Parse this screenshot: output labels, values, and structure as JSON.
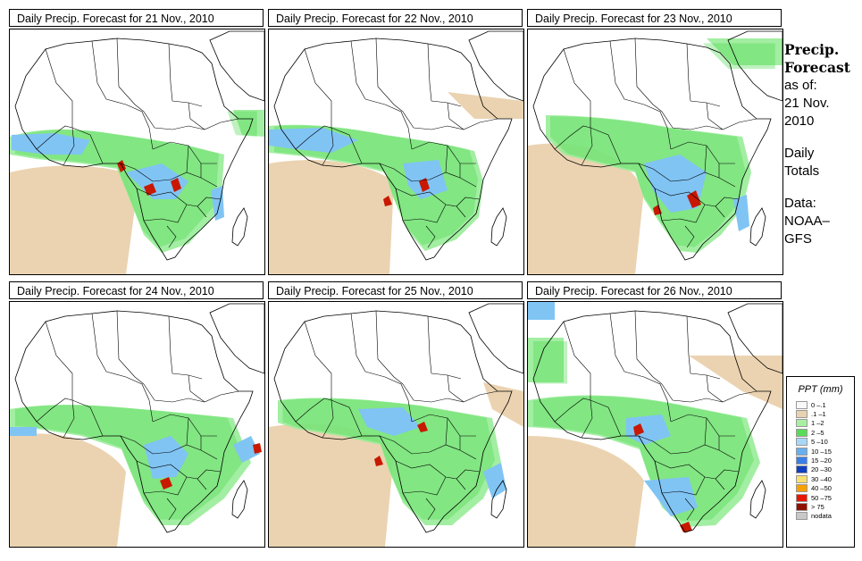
{
  "panels": [
    {
      "title": "Daily Precip. Forecast for  21 Nov., 2010"
    },
    {
      "title": "Daily Precip. Forecast for  22 Nov., 2010"
    },
    {
      "title": "Daily Precip. Forecast for  23 Nov., 2010"
    },
    {
      "title": "Daily Precip. Forecast for  24 Nov., 2010"
    },
    {
      "title": "Daily Precip. Forecast for  25 Nov., 2010"
    },
    {
      "title": "Daily Precip. Forecast for  26 Nov., 2010"
    }
  ],
  "sidebar": {
    "heading1": "Precip.",
    "heading2": "Forecast",
    "asof": "as of:",
    "date1": "21 Nov.",
    "date2": "2010",
    "totals1": "Daily",
    "totals2": "Totals",
    "data1": "Data:",
    "data2": "NOAA–",
    "data3": "GFS"
  },
  "legend": {
    "title": "PPT (mm)",
    "items": [
      {
        "label": "0 –.1",
        "color": "#f8f8f8"
      },
      {
        "label": ".1 –1",
        "color": "#e8d2b0"
      },
      {
        "label": "1 –2",
        "color": "#a8f0a0"
      },
      {
        "label": "2 –5",
        "color": "#58dc58"
      },
      {
        "label": "5 –10",
        "color": "#a8d8f8"
      },
      {
        "label": "10 –15",
        "color": "#68b0f0"
      },
      {
        "label": "15 –20",
        "color": "#3880e8"
      },
      {
        "label": "20 –30",
        "color": "#1040c0"
      },
      {
        "label": "30 –40",
        "color": "#f8e070"
      },
      {
        "label": "40 –50",
        "color": "#f8a000"
      },
      {
        "label": "50 –75",
        "color": "#e81800"
      },
      {
        "label": "> 75",
        "color": "#901000"
      },
      {
        "label": "nodata",
        "color": "#c8c8c8"
      }
    ]
  },
  "colors": {
    "land": "#ffffff",
    "dry": "#ebd3b1",
    "light": "#98ec98",
    "moderate": "#48d848",
    "wet": "#80c4f4",
    "heavy": "#2868e0",
    "extreme": "#c81800",
    "border": "#000000"
  }
}
